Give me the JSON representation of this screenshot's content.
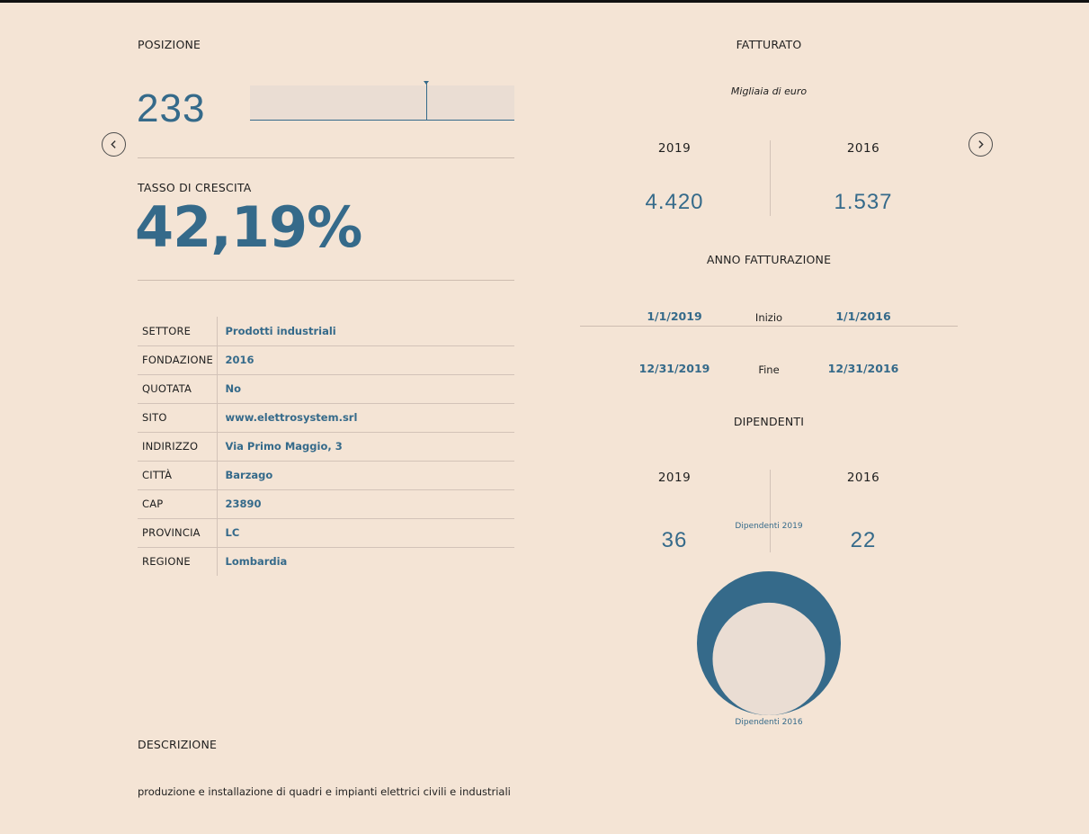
{
  "position": {
    "title": "POSIZIONE",
    "value": "233",
    "marker_fraction": 0.668
  },
  "growth": {
    "title": "TASSO DI CRESCITA",
    "value": "42,19%"
  },
  "info": [
    {
      "key": "SETTORE",
      "value": "Prodotti industriali"
    },
    {
      "key": "FONDAZIONE",
      "value": "2016"
    },
    {
      "key": "QUOTATA",
      "value": "No"
    },
    {
      "key": "SITO",
      "value": "www.elettrosystem.srl"
    },
    {
      "key": "INDIRIZZO",
      "value": "Via Primo Maggio, 3"
    },
    {
      "key": "CITTÀ",
      "value": "Barzago"
    },
    {
      "key": "CAP",
      "value": "23890"
    },
    {
      "key": "PROVINCIA",
      "value": "LC"
    },
    {
      "key": "REGIONE",
      "value": "Lombardia"
    }
  ],
  "description": {
    "title": "DESCRIZIONE",
    "text": "produzione e installazione di quadri e impianti elettrici civili e industriali"
  },
  "revenue": {
    "title": "FATTURATO",
    "subtitle": "Migliaia di euro",
    "year_a": "2019",
    "value_a": "4.420",
    "year_b": "2016",
    "value_b": "1.537"
  },
  "billing_year": {
    "title": "ANNO FATTURAZIONE",
    "start_label": "Inizio",
    "end_label": "Fine",
    "start_a": "1/1/2019",
    "start_b": "1/1/2016",
    "end_a": "12/31/2019",
    "end_b": "12/31/2016"
  },
  "employees": {
    "title": "DIPENDENTI",
    "year_a": "2019",
    "value_a": "36",
    "year_b": "2016",
    "value_b": "22",
    "label_a": "Dipendenti 2019",
    "label_b": "Dipendenti 2016"
  },
  "chart_data": {
    "type": "nested-circles",
    "series": [
      {
        "name": "Dipendenti 2019",
        "value": 36
      },
      {
        "name": "Dipendenti 2016",
        "value": 22
      }
    ]
  },
  "colors": {
    "accent": "#356a8a",
    "background": "#f4e4d5",
    "panel": "#eaddd3"
  },
  "nav": {
    "prev_icon": "chevron-left-icon",
    "next_icon": "chevron-right-icon"
  }
}
